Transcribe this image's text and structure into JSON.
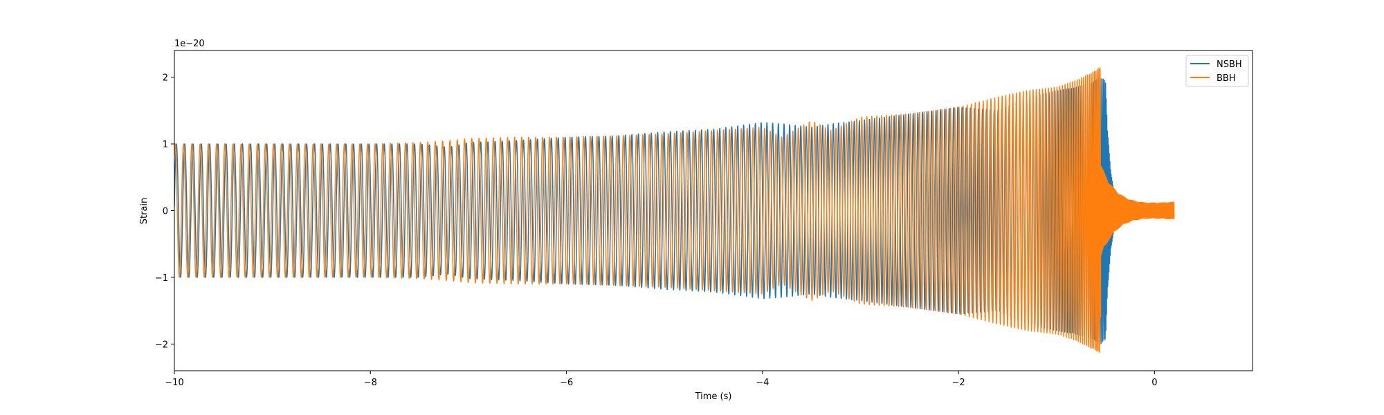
{
  "chart_data": {
    "type": "line",
    "title": "",
    "xlabel": "Time (s)",
    "ylabel": "Strain",
    "y_offset_label": "1e−20",
    "y_scale": 1e-20,
    "xlim": [
      -10,
      1
    ],
    "ylim": [
      -2.4,
      2.4
    ],
    "x_ticks": [
      -10,
      -8,
      -6,
      -4,
      -2,
      0
    ],
    "x_tick_labels": [
      "−10",
      "−8",
      "−6",
      "−4",
      "−2",
      "0"
    ],
    "y_ticks": [
      -2,
      -1,
      0,
      1,
      2
    ],
    "y_tick_labels": [
      "−2",
      "−1",
      "0",
      "1",
      "2"
    ],
    "grid": false,
    "legend_position": "top-right",
    "series": [
      {
        "name": "NSBH",
        "color": "#1f77b4",
        "x_start": -10.0,
        "x_end": -0.4,
        "merger_time": -0.5,
        "envelope": {
          "t": [
            -10.0,
            -9.0,
            -8.0,
            -7.5,
            -7.2,
            -7.0,
            -6.5,
            -6.0,
            -5.5,
            -5.0,
            -4.5,
            -4.0,
            -3.8,
            -3.5,
            -3.3,
            -3.0,
            -2.5,
            -2.0,
            -1.6,
            -1.3,
            -1.0,
            -0.8,
            -0.6,
            -0.55,
            -0.5,
            -0.45,
            -0.4
          ],
          "amp": [
            1.0,
            1.0,
            1.0,
            1.0,
            0.95,
            1.02,
            1.05,
            1.1,
            1.12,
            1.18,
            1.22,
            1.32,
            1.3,
            1.25,
            1.3,
            1.35,
            1.45,
            1.55,
            1.5,
            1.7,
            1.8,
            1.85,
            1.95,
            2.0,
            1.95,
            1.4,
            1.0
          ]
        }
      },
      {
        "name": "BBH",
        "color": "#ff7f0e",
        "x_start": -10.0,
        "x_end": 0.2,
        "merger_time": -0.55,
        "envelope": {
          "t": [
            -10.0,
            -9.0,
            -8.0,
            -7.5,
            -7.2,
            -7.0,
            -6.5,
            -6.0,
            -5.5,
            -5.0,
            -4.5,
            -4.0,
            -3.8,
            -3.5,
            -3.3,
            -3.0,
            -2.5,
            -2.0,
            -1.6,
            -1.3,
            -1.0,
            -0.8,
            -0.6,
            -0.55,
            -0.5,
            -0.45,
            -0.4
          ],
          "amp": [
            1.0,
            1.0,
            1.0,
            1.02,
            1.05,
            1.08,
            1.1,
            1.1,
            1.12,
            1.15,
            1.2,
            1.25,
            1.1,
            1.35,
            1.2,
            1.4,
            1.45,
            1.55,
            1.7,
            1.8,
            1.85,
            1.95,
            2.1,
            2.15,
            1.0,
            0.7,
            0.5
          ]
        },
        "ringdown_start_amp": 0.7,
        "ringdown_end_amp": 0.12
      }
    ]
  }
}
